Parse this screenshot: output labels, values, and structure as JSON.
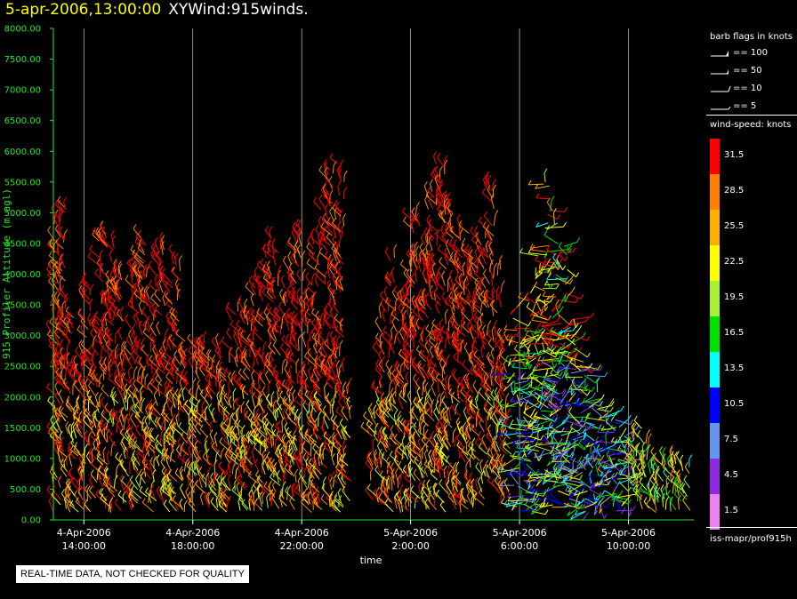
{
  "header": {
    "timestamp": "5-apr-2006,13:00:00",
    "plot_name": "XYWind:915winds."
  },
  "legend": {
    "barb_title": "barb flags in knots",
    "barbs": [
      {
        "label": "== 100",
        "knots": 100
      },
      {
        "label": "== 50",
        "knots": 50
      },
      {
        "label": "== 10",
        "knots": 10
      },
      {
        "label": "== 5",
        "knots": 5
      }
    ],
    "speed_title": "wind-speed: knots",
    "colorbar": [
      {
        "label": "31.5",
        "color": "#ff0000"
      },
      {
        "label": "28.5",
        "color": "#ff8000"
      },
      {
        "label": "25.5",
        "color": "#ffb000"
      },
      {
        "label": "22.5",
        "color": "#ffff00"
      },
      {
        "label": "19.5",
        "color": "#a8f030"
      },
      {
        "label": "16.5",
        "color": "#00e000"
      },
      {
        "label": "13.5",
        "color": "#00ffff"
      },
      {
        "label": "10.5",
        "color": "#0000ff"
      },
      {
        "label": "7.5",
        "color": "#6495ed"
      },
      {
        "label": "4.5",
        "color": "#8a2be2"
      },
      {
        "label": "1.5",
        "color": "#ee82ee"
      }
    ],
    "source": "iss-mapr/prof915h"
  },
  "notice": "REAL-TIME DATA, NOT CHECKED FOR QUALITY",
  "chart_data": {
    "type": "scatter",
    "title": "",
    "xlabel": "time",
    "ylabel": "915 Profiler Altitude (m agl)",
    "xlim_hours": [
      12.88,
      36.4
    ],
    "ylim": [
      0,
      8000
    ],
    "yticks": [
      "0.00",
      "500.00",
      "1000.00",
      "1500.00",
      "2000.00",
      "2500.00",
      "3000.00",
      "3500.00",
      "4000.00",
      "4500.00",
      "5000.00",
      "5500.00",
      "6000.00",
      "6500.00",
      "7000.00",
      "7500.00",
      "8000.00"
    ],
    "xticks": [
      {
        "hour": 14,
        "date": "4-Apr-2006",
        "time": "14:00:00"
      },
      {
        "hour": 18,
        "date": "4-Apr-2006",
        "time": "18:00:00"
      },
      {
        "hour": 22,
        "date": "4-Apr-2006",
        "time": "22:00:00"
      },
      {
        "hour": 26,
        "date": "5-Apr-2006",
        "time": "2:00:00"
      },
      {
        "hour": 30,
        "date": "5-Apr-2006",
        "time": "6:00:00"
      },
      {
        "hour": 34,
        "date": "5-Apr-2006",
        "time": "10:00:00"
      }
    ],
    "grid": "vertical",
    "axis_color": "#22e622",
    "profile_top_altitude_m": [
      [
        13.0,
        4900
      ],
      [
        13.2,
        5100
      ],
      [
        13.5,
        3400
      ],
      [
        13.8,
        2600
      ],
      [
        14.1,
        3900
      ],
      [
        14.4,
        3200
      ],
      [
        14.7,
        4800
      ],
      [
        15.0,
        4500
      ],
      [
        15.3,
        4100
      ],
      [
        15.6,
        2800
      ],
      [
        15.9,
        4200
      ],
      [
        16.2,
        4600
      ],
      [
        16.5,
        3600
      ],
      [
        16.8,
        4500
      ],
      [
        17.1,
        3900
      ],
      [
        17.4,
        4400
      ],
      [
        17.7,
        3000
      ],
      [
        18.0,
        2500
      ],
      [
        18.3,
        2900
      ],
      [
        18.6,
        2600
      ],
      [
        18.9,
        3000
      ],
      [
        19.2,
        2400
      ],
      [
        19.5,
        3400
      ],
      [
        19.8,
        3500
      ],
      [
        20.1,
        3400
      ],
      [
        20.4,
        3900
      ],
      [
        20.7,
        4400
      ],
      [
        21.0,
        4700
      ],
      [
        21.3,
        3800
      ],
      [
        21.6,
        4300
      ],
      [
        21.9,
        4700
      ],
      [
        22.2,
        3600
      ],
      [
        22.5,
        4500
      ],
      [
        22.8,
        5100
      ],
      [
        23.1,
        5700
      ],
      [
        23.4,
        6000
      ],
      [
        23.65,
        2100
      ],
      [
        24.7,
        1800
      ],
      [
        25.0,
        3500
      ],
      [
        25.3,
        4300
      ],
      [
        25.6,
        3700
      ],
      [
        25.9,
        4200
      ],
      [
        26.2,
        5000
      ],
      [
        26.5,
        4800
      ],
      [
        26.8,
        5600
      ],
      [
        27.1,
        5850
      ],
      [
        27.4,
        5200
      ],
      [
        27.7,
        4800
      ],
      [
        28.0,
        4700
      ],
      [
        28.3,
        4300
      ],
      [
        28.6,
        4600
      ],
      [
        28.9,
        5500
      ],
      [
        29.2,
        4200
      ],
      [
        29.5,
        3000
      ],
      [
        29.8,
        3500
      ],
      [
        30.1,
        2900
      ],
      [
        30.4,
        3600
      ],
      [
        30.7,
        4300
      ],
      [
        31.0,
        5500
      ],
      [
        31.3,
        5200
      ],
      [
        31.6,
        4700
      ],
      [
        31.9,
        3300
      ],
      [
        32.2,
        2800
      ],
      [
        32.5,
        2500
      ],
      [
        32.8,
        2100
      ],
      [
        33.1,
        2000
      ],
      [
        33.4,
        1800
      ],
      [
        33.7,
        1600
      ],
      [
        34.0,
        1450
      ],
      [
        34.3,
        1400
      ],
      [
        34.6,
        1500
      ],
      [
        34.9,
        1200
      ],
      [
        35.2,
        1100
      ],
      [
        35.5,
        1000
      ],
      [
        35.8,
        1000
      ],
      [
        36.1,
        900
      ]
    ]
  }
}
